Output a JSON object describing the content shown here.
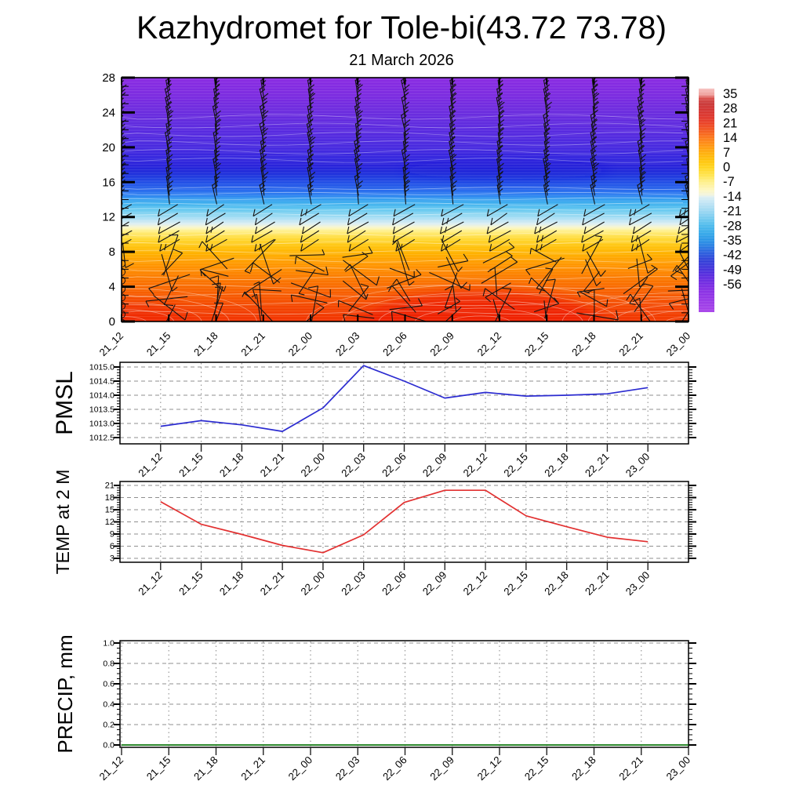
{
  "title": "Kazhydromet for Tole-bi(43.72 73.78)",
  "subtitle": "21 March 2026",
  "time_labels": [
    "21_12",
    "21_15",
    "21_18",
    "21_21",
    "22_00",
    "22_03",
    "22_06",
    "22_09",
    "22_12",
    "22_15",
    "22_18",
    "22_21",
    "23_00"
  ],
  "colorbar": {
    "tick_labels": [
      "35",
      "28",
      "21",
      "14",
      "7",
      "0",
      "-7",
      "-14",
      "-21",
      "-28",
      "-35",
      "-42",
      "-49",
      "-56"
    ],
    "top_color": "#ee9b97",
    "bottom_color": "#a43be8"
  },
  "chart_data": [
    {
      "type": "heatmap",
      "name": "temperature-height-time-cross-section",
      "x": [
        "21_12",
        "21_15",
        "21_18",
        "21_21",
        "22_00",
        "22_03",
        "22_06",
        "22_09",
        "22_12",
        "22_15",
        "22_18",
        "22_21",
        "23_00"
      ],
      "ylim": [
        0,
        28
      ],
      "yticks": [
        0,
        4,
        8,
        12,
        16,
        20,
        24,
        28
      ],
      "colorbar_ticks": [
        35,
        28,
        21,
        14,
        7,
        0,
        -7,
        -14,
        -21,
        -28,
        -35,
        -42,
        -49,
        -56
      ],
      "vertical_profile": {
        "heights": [
          0,
          2,
          4,
          6,
          8,
          10,
          11,
          12,
          14,
          16,
          18,
          20,
          24,
          28
        ],
        "temperatures": [
          22,
          17,
          14,
          10,
          7,
          1,
          -5,
          -16,
          -26,
          -36,
          -45,
          -50,
          -55,
          -58
        ]
      },
      "surface_warm_maximum_at": "22_09",
      "overlay": "wind barbs at every level and time step; calm circles on left edge",
      "legend_position": "right colorbar"
    },
    {
      "type": "line",
      "name": "pmsl",
      "ylabel": "PMSL",
      "x": [
        "21_12",
        "21_15",
        "21_18",
        "21_21",
        "22_00",
        "22_03",
        "22_06",
        "22_09",
        "22_12",
        "22_15",
        "22_18",
        "22_21",
        "23_00"
      ],
      "values": [
        1012.9,
        1013.1,
        1012.95,
        1012.72,
        1013.55,
        1015.05,
        1014.5,
        1013.9,
        1014.1,
        1013.97,
        1014.0,
        1014.05,
        1014.27
      ],
      "yticks": [
        1012.5,
        1013.0,
        1013.5,
        1014.0,
        1014.5,
        1015.0
      ],
      "ytick_labels": [
        "1012.5",
        "1013.0",
        "1013.5",
        "1014.0",
        "1014.5",
        "1015.0"
      ],
      "ylim": [
        1012.3,
        1015.2
      ],
      "line_color": "#2b2bd0",
      "grid": true
    },
    {
      "type": "line",
      "name": "temp-2m",
      "ylabel": "TEMP at 2 M",
      "x": [
        "21_12",
        "21_15",
        "21_18",
        "21_21",
        "22_00",
        "22_03",
        "22_06",
        "22_09",
        "22_12",
        "22_15",
        "22_18",
        "22_21",
        "23_00"
      ],
      "values": [
        17.0,
        11.4,
        8.9,
        6.2,
        4.4,
        8.8,
        16.8,
        19.8,
        19.8,
        13.5,
        10.8,
        8.2,
        7.1
      ],
      "yticks": [
        3,
        6,
        9,
        12,
        15,
        18,
        21
      ],
      "ytick_labels": [
        "3",
        "6",
        "9",
        "12",
        "15",
        "18",
        "21"
      ],
      "ylim": [
        2.5,
        21.5
      ],
      "line_color": "#e23030",
      "grid": true
    },
    {
      "type": "line",
      "name": "precip",
      "ylabel": "PRECIP, mm",
      "x": [
        "21_12",
        "21_15",
        "21_18",
        "21_21",
        "22_00",
        "22_03",
        "22_06",
        "22_09",
        "22_12",
        "22_15",
        "22_18",
        "22_21",
        "23_00"
      ],
      "values": [
        0,
        0,
        0,
        0,
        0,
        0,
        0,
        0,
        0,
        0,
        0,
        0,
        0
      ],
      "yticks": [
        0.0,
        0.2,
        0.4,
        0.6,
        0.8,
        1.0
      ],
      "ytick_labels": [
        "0.0",
        "0.2",
        "0.4",
        "0.6",
        "0.8",
        "1.0"
      ],
      "ylim": [
        0,
        1.0
      ],
      "line_color": "#117711",
      "grid": true
    }
  ]
}
